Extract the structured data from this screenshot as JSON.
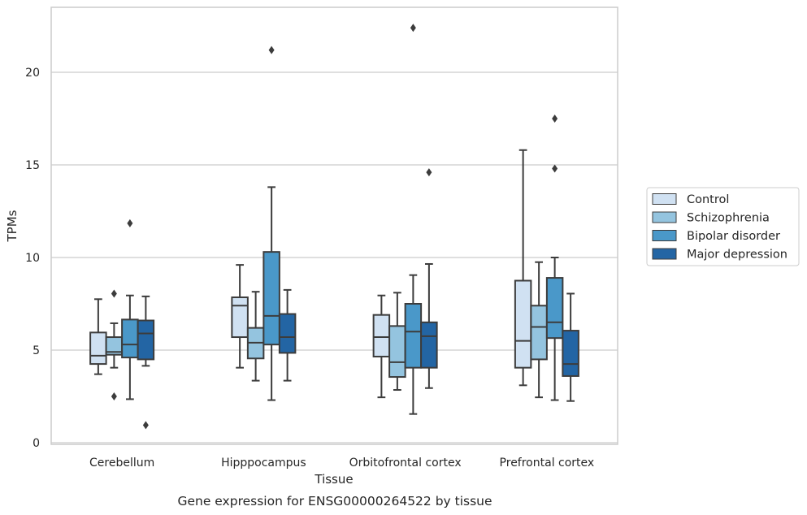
{
  "chart_data": {
    "type": "box",
    "caption": "Gene expression for ENSG00000264522 by tissue",
    "xlabel": "Tissue",
    "ylabel": "TPMs",
    "ylim": [
      -0.1,
      23.5
    ],
    "yticks": [
      0,
      5,
      10,
      15,
      20
    ],
    "grid": "horizontal",
    "legend_position": "right, outside plot",
    "categories": [
      "Cerebellum",
      "Hipppocampus",
      "Orbitofrontal cortex",
      "Prefrontal cortex"
    ],
    "series": [
      {
        "name": "Control",
        "color": "#d0e1f2",
        "boxes": [
          {
            "whislo": 3.7,
            "q1": 4.25,
            "med": 4.7,
            "q3": 5.95,
            "whishi": 7.75,
            "fliers": []
          },
          {
            "whislo": 4.05,
            "q1": 5.7,
            "med": 7.4,
            "q3": 7.85,
            "whishi": 9.6,
            "fliers": []
          },
          {
            "whislo": 2.45,
            "q1": 4.65,
            "med": 5.7,
            "q3": 6.9,
            "whishi": 7.95,
            "fliers": []
          },
          {
            "whislo": 3.1,
            "q1": 4.05,
            "med": 5.5,
            "q3": 8.75,
            "whishi": 15.8,
            "fliers": []
          }
        ]
      },
      {
        "name": "Schizophrenia",
        "color": "#94c4df",
        "boxes": [
          {
            "whislo": 4.05,
            "q1": 4.75,
            "med": 4.9,
            "q3": 5.7,
            "whishi": 6.45,
            "fliers": [
              2.5,
              8.05
            ]
          },
          {
            "whislo": 3.35,
            "q1": 4.55,
            "med": 5.4,
            "q3": 6.2,
            "whishi": 8.15,
            "fliers": []
          },
          {
            "whislo": 2.85,
            "q1": 3.55,
            "med": 4.35,
            "q3": 6.3,
            "whishi": 8.1,
            "fliers": []
          },
          {
            "whislo": 2.45,
            "q1": 4.5,
            "med": 6.25,
            "q3": 7.4,
            "whishi": 9.75,
            "fliers": []
          }
        ]
      },
      {
        "name": "Bipolar disorder",
        "color": "#4a98c9",
        "boxes": [
          {
            "whislo": 2.35,
            "q1": 4.6,
            "med": 5.3,
            "q3": 6.65,
            "whishi": 7.95,
            "fliers": [
              11.85
            ]
          },
          {
            "whislo": 2.3,
            "q1": 5.3,
            "med": 6.85,
            "q3": 10.3,
            "whishi": 13.8,
            "fliers": [
              21.2
            ]
          },
          {
            "whislo": 1.55,
            "q1": 4.05,
            "med": 6.0,
            "q3": 7.5,
            "whishi": 9.05,
            "fliers": [
              22.4
            ]
          },
          {
            "whislo": 2.3,
            "q1": 5.65,
            "med": 6.5,
            "q3": 8.9,
            "whishi": 10.0,
            "fliers": [
              14.8,
              17.5
            ]
          }
        ]
      },
      {
        "name": "Major depression",
        "color": "#2365a4",
        "boxes": [
          {
            "whislo": 4.15,
            "q1": 4.5,
            "med": 5.9,
            "q3": 6.6,
            "whishi": 7.9,
            "fliers": [
              0.95
            ]
          },
          {
            "whislo": 3.35,
            "q1": 4.85,
            "med": 5.7,
            "q3": 6.95,
            "whishi": 8.25,
            "fliers": []
          },
          {
            "whislo": 2.95,
            "q1": 4.05,
            "med": 5.75,
            "q3": 6.5,
            "whishi": 9.65,
            "fliers": [
              14.6
            ]
          },
          {
            "whislo": 2.25,
            "q1": 3.6,
            "med": 4.25,
            "q3": 6.05,
            "whishi": 8.05,
            "fliers": []
          }
        ]
      }
    ]
  }
}
